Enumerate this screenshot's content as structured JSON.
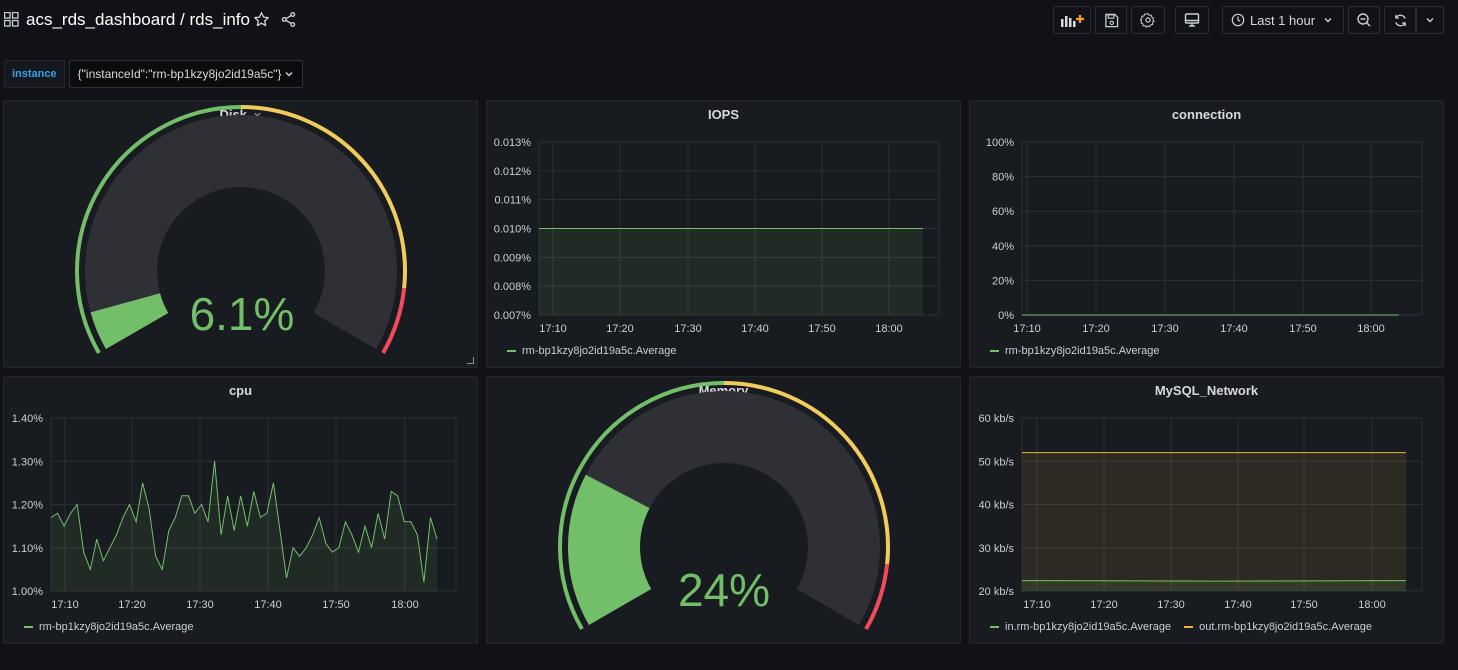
{
  "header": {
    "title": "acs_rds_dashboard / rds_info",
    "time_range": "Last 1 hour"
  },
  "variables": {
    "instance_label": "instance",
    "instance_value": "{\"instanceId\":\"rm-bp1kzy8jo2id19a5c\"}"
  },
  "colors": {
    "green": "#73bf69",
    "yellow": "#f2cc5a",
    "red": "#f2495c",
    "orange": "#ff9830"
  },
  "panels": {
    "disk": {
      "title": "Disk",
      "value": 6.1,
      "display": "6.1%",
      "min": 0,
      "max": 100,
      "thresholds": [
        {
          "color": "green",
          "from": 0
        },
        {
          "color": "yellow",
          "from": 50
        },
        {
          "color": "red",
          "from": 90
        }
      ]
    },
    "memory": {
      "title": "Memory",
      "value": 24,
      "display": "24%",
      "min": 0,
      "max": 100,
      "thresholds": [
        {
          "color": "green",
          "from": 0
        },
        {
          "color": "yellow",
          "from": 50
        },
        {
          "color": "red",
          "from": 90
        }
      ]
    },
    "iops": {
      "title": "IOPS",
      "legend": [
        "rm-bp1kzy8jo2id19a5c.Average"
      ]
    },
    "connection": {
      "title": "connection",
      "legend": [
        "rm-bp1kzy8jo2id19a5c.Average"
      ]
    },
    "cpu": {
      "title": "cpu",
      "legend": [
        "rm-bp1kzy8jo2id19a5c.Average"
      ]
    },
    "network": {
      "title": "MySQL_Network",
      "legend": [
        "in.rm-bp1kzy8jo2id19a5c.Average",
        "out.rm-bp1kzy8jo2id19a5c.Average"
      ]
    }
  },
  "chart_data": [
    {
      "id": "iops",
      "type": "area",
      "title": "IOPS",
      "x_ticks": [
        "17:10",
        "17:20",
        "17:30",
        "17:40",
        "17:50",
        "18:00"
      ],
      "y_ticks": [
        "0.007%",
        "0.008%",
        "0.009%",
        "0.010%",
        "0.011%",
        "0.012%",
        "0.013%"
      ],
      "ylim": [
        0.007,
        0.013
      ],
      "series": [
        {
          "name": "rm-bp1kzy8jo2id19a5c.Average",
          "values": [
            0.01,
            0.01
          ]
        }
      ]
    },
    {
      "id": "connection",
      "type": "line",
      "title": "connection",
      "x_ticks": [
        "17:10",
        "17:20",
        "17:30",
        "17:40",
        "17:50",
        "18:00"
      ],
      "y_ticks": [
        "0%",
        "20%",
        "40%",
        "60%",
        "80%",
        "100%"
      ],
      "ylim": [
        0,
        100
      ],
      "series": [
        {
          "name": "rm-bp1kzy8jo2id19a5c.Average",
          "values": [
            0,
            0
          ]
        }
      ]
    },
    {
      "id": "cpu",
      "type": "area",
      "title": "cpu",
      "x_ticks": [
        "17:10",
        "17:20",
        "17:30",
        "17:40",
        "17:50",
        "18:00"
      ],
      "y_ticks": [
        "1.00%",
        "1.10%",
        "1.20%",
        "1.30%",
        "1.40%"
      ],
      "ylim": [
        1.0,
        1.4
      ],
      "series": [
        {
          "name": "rm-bp1kzy8jo2id19a5c.Average",
          "values": [
            1.17,
            1.18,
            1.15,
            1.18,
            1.2,
            1.09,
            1.05,
            1.12,
            1.07,
            1.1,
            1.13,
            1.17,
            1.2,
            1.16,
            1.25,
            1.19,
            1.08,
            1.05,
            1.14,
            1.17,
            1.22,
            1.22,
            1.18,
            1.2,
            1.16,
            1.3,
            1.13,
            1.22,
            1.14,
            1.22,
            1.15,
            1.23,
            1.17,
            1.18,
            1.25,
            1.14,
            1.03,
            1.1,
            1.08,
            1.1,
            1.13,
            1.17,
            1.11,
            1.09,
            1.1,
            1.16,
            1.13,
            1.09,
            1.15,
            1.1,
            1.18,
            1.12,
            1.23,
            1.22,
            1.16,
            1.16,
            1.13,
            1.02,
            1.17,
            1.12
          ]
        }
      ]
    },
    {
      "id": "network",
      "type": "area",
      "title": "MySQL_Network",
      "x_ticks": [
        "17:10",
        "17:20",
        "17:30",
        "17:40",
        "17:50",
        "18:00"
      ],
      "y_ticks": [
        "20 kb/s",
        "30 kb/s",
        "40 kb/s",
        "50 kb/s",
        "60 kb/s"
      ],
      "ylim": [
        20,
        60
      ],
      "series": [
        {
          "name": "in.rm-bp1kzy8jo2id19a5c.Average",
          "values": [
            22.4,
            22.3,
            22.4
          ]
        },
        {
          "name": "out.rm-bp1kzy8jo2id19a5c.Average",
          "values": [
            52.0,
            52.0,
            52.0
          ]
        }
      ]
    }
  ]
}
